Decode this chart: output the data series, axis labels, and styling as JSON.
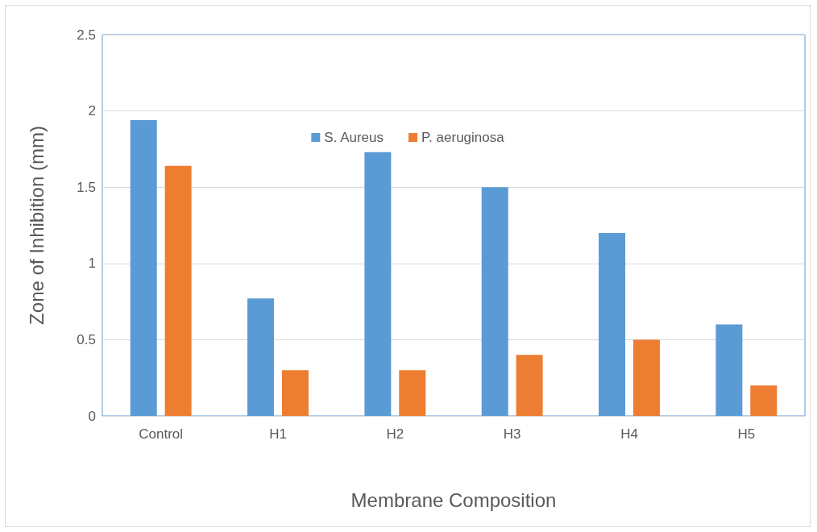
{
  "chart_data": {
    "type": "bar",
    "xlabel": "Membrane Composition",
    "ylabel": "Zone of Inhibition (mm)",
    "categories": [
      "Control",
      "H1",
      "H2",
      "H3",
      "H4",
      "H5"
    ],
    "series": [
      {
        "name": "S. Aureus",
        "color": "#5b9bd5",
        "values": [
          1.94,
          0.77,
          1.73,
          1.5,
          1.2,
          0.6
        ]
      },
      {
        "name": "P. aeruginosa",
        "color": "#ed7d31",
        "values": [
          1.64,
          0.3,
          0.3,
          0.4,
          0.5,
          0.2
        ]
      }
    ],
    "ylim": [
      0,
      2.5
    ],
    "yticks": [
      0,
      0.5,
      1,
      1.5,
      2,
      2.5
    ],
    "grid": "y",
    "legend": "top"
  }
}
